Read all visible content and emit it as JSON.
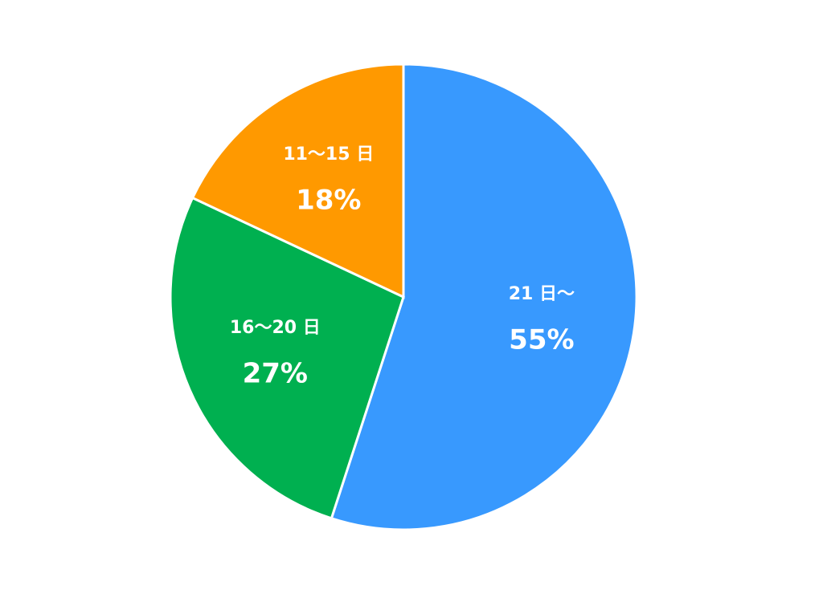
{
  "chart_data": {
    "type": "pie",
    "categories": [
      "21 日～",
      "16～20 日",
      "11～15 日"
    ],
    "values": [
      55,
      27,
      18
    ],
    "value_labels": [
      "55%",
      "27%",
      "18%"
    ],
    "colors": [
      "#3899fe",
      "#00b050",
      "#ff9900"
    ]
  }
}
